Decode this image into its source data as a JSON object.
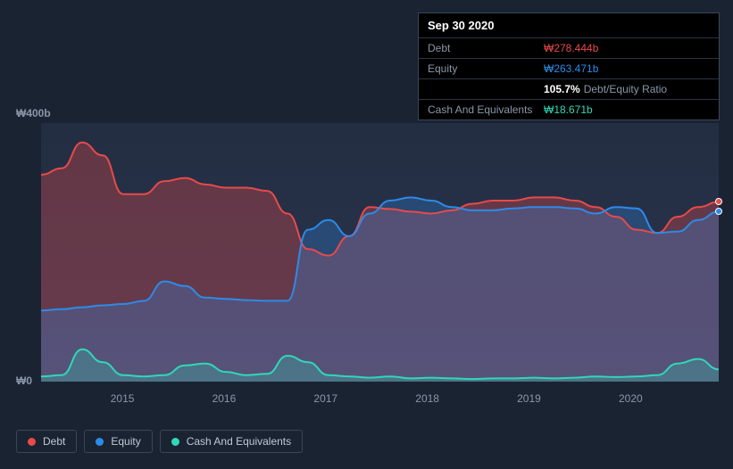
{
  "tooltip": {
    "date": "Sep 30 2020",
    "rows": {
      "debt": {
        "label": "Debt",
        "value": "₩278.444b"
      },
      "equity": {
        "label": "Equity",
        "value": "₩263.471b"
      },
      "ratio": {
        "label": "",
        "value": "105.7%",
        "suffix": "Debt/Equity Ratio"
      },
      "cash": {
        "label": "Cash And Equivalents",
        "value": "₩18.671b"
      }
    }
  },
  "chart": {
    "ylim": [
      0,
      400
    ],
    "y_ticks": [
      {
        "value": 400,
        "label": "₩400b"
      },
      {
        "value": 0,
        "label": "₩0"
      }
    ],
    "x_ticks": [
      "2015",
      "2016",
      "2017",
      "2018",
      "2019",
      "2020"
    ],
    "x_tick_positions_pct": [
      12,
      27,
      42,
      57,
      72,
      87
    ],
    "background_color": "#1a2332",
    "plot_bg_top": "#232e42",
    "plot_bg_bottom": "#2a3550",
    "series": {
      "debt": {
        "label": "Debt",
        "color": "#e84a4a",
        "fill_opacity": 0.32,
        "fill": true,
        "values": [
          320,
          330,
          370,
          350,
          290,
          290,
          310,
          315,
          305,
          300,
          300,
          295,
          260,
          205,
          195,
          225,
          270,
          267,
          263,
          260,
          265,
          275,
          280,
          280,
          285,
          285,
          280,
          270,
          255,
          235,
          230,
          255,
          270,
          278
        ]
      },
      "equity": {
        "label": "Equity",
        "color": "#2d8be8",
        "fill_opacity": 0.28,
        "fill": true,
        "values": [
          110,
          112,
          115,
          118,
          120,
          125,
          155,
          148,
          130,
          128,
          126,
          125,
          125,
          235,
          250,
          225,
          260,
          280,
          285,
          280,
          270,
          265,
          265,
          268,
          270,
          270,
          268,
          260,
          270,
          268,
          230,
          232,
          250,
          263
        ]
      },
      "cash": {
        "label": "Cash And Equivalents",
        "color": "#2fd8b8",
        "fill_opacity": 0.25,
        "fill": true,
        "values": [
          8,
          10,
          50,
          30,
          10,
          8,
          10,
          25,
          28,
          15,
          10,
          12,
          40,
          30,
          10,
          8,
          6,
          8,
          5,
          6,
          5,
          4,
          5,
          5,
          6,
          5,
          6,
          8,
          7,
          8,
          10,
          28,
          35,
          19
        ]
      }
    },
    "end_markers": {
      "debt_y": 278,
      "equity_y": 263
    }
  },
  "legend": [
    {
      "key": "debt",
      "label": "Debt",
      "color": "#e84a4a"
    },
    {
      "key": "equity",
      "label": "Equity",
      "color": "#2d8be8"
    },
    {
      "key": "cash",
      "label": "Cash And Equivalents",
      "color": "#2fd8b8"
    }
  ]
}
